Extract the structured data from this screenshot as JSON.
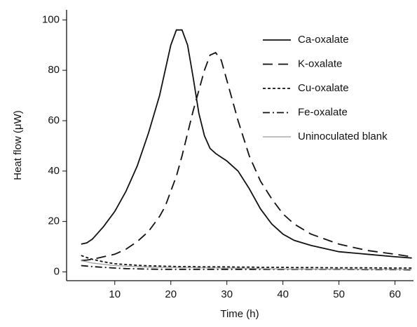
{
  "chart_data": {
    "type": "line",
    "x_label": "Time (h)",
    "y_label": "Heat flow (μW)",
    "x": [
      4,
      5,
      6,
      8,
      10,
      12,
      14,
      16,
      18,
      19,
      20,
      21,
      22,
      23,
      24,
      25,
      26,
      27,
      28,
      29,
      30,
      32,
      34,
      36,
      38,
      40,
      42,
      45,
      50,
      55,
      60,
      63
    ],
    "series": [
      {
        "name": "Ca-oxalate",
        "color": "#111111",
        "dash": "solid",
        "values": [
          11,
          11.5,
          13,
          18,
          24,
          32,
          42,
          55,
          70,
          80,
          90,
          96,
          96,
          90,
          77,
          63,
          54,
          49,
          47,
          45.5,
          44,
          40,
          33,
          25,
          19,
          15,
          12.5,
          10.5,
          8,
          7,
          6,
          5.5
        ]
      },
      {
        "name": "K-oxalate",
        "color": "#111111",
        "dash": "dashed",
        "values": [
          4.5,
          4.7,
          5,
          6,
          7,
          9,
          12,
          16,
          22,
          26,
          32,
          38,
          46,
          55,
          64,
          72,
          80,
          86,
          87,
          84,
          76,
          60,
          46,
          36,
          29,
          23,
          19,
          15,
          11,
          8.5,
          7,
          6
        ]
      },
      {
        "name": "Cu-oxalate",
        "color": "#111111",
        "dash": "dotted",
        "values": [
          6.5,
          5.7,
          5,
          4,
          3.2,
          2.9,
          2.6,
          2.4,
          2.3,
          2.2,
          2.2,
          2.1,
          2.1,
          2.1,
          2.1,
          2,
          2,
          2,
          2,
          2,
          2,
          1.9,
          1.9,
          1.8,
          1.8,
          1.8,
          1.7,
          1.7,
          1.6,
          1.6,
          1.5,
          1.5
        ]
      },
      {
        "name": "Fe-oxalate",
        "color": "#111111",
        "dash": "dashdot",
        "values": [
          2.5,
          2.3,
          2.1,
          1.8,
          1.5,
          1.3,
          1.2,
          1.1,
          1,
          1,
          1,
          1,
          1,
          1,
          1,
          1,
          1,
          1,
          1,
          1,
          1,
          1,
          1,
          1,
          1,
          1,
          1,
          1,
          1,
          0.9,
          0.9,
          0.8
        ]
      },
      {
        "name": "Uninoculated blank",
        "color": "#999999",
        "dash": "solid",
        "values": [
          4.5,
          4,
          3.5,
          3,
          2.5,
          2.3,
          2.1,
          1.9,
          1.8,
          1.8,
          1.8,
          1.7,
          1.7,
          1.7,
          1.7,
          1.6,
          1.6,
          1.6,
          1.6,
          1.5,
          1.5,
          1.5,
          1.4,
          1.3,
          1.2,
          1.2,
          1.1,
          1.1,
          1,
          1,
          1,
          1
        ]
      }
    ],
    "xlim": [
      1.4,
      63.3
    ],
    "ylim": [
      -3.5,
      104
    ],
    "xticks": [
      10,
      20,
      30,
      40,
      50,
      60
    ],
    "yticks": [
      0,
      20,
      40,
      60,
      80,
      100
    ],
    "legend": "top-right"
  }
}
